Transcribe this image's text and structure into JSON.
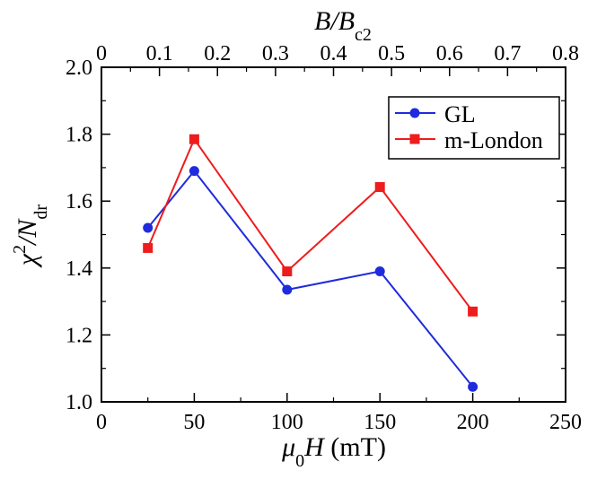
{
  "chart_data": {
    "type": "line",
    "xlabel": {
      "prefix": "μ",
      "sub": "0",
      "main": "H",
      "suffix": " (mT)"
    },
    "ylabel": {
      "main": "χ",
      "sup": "2",
      "mid": "/N",
      "sub": "dr"
    },
    "top_xlabel": {
      "main": "B/B",
      "sub": "c2"
    },
    "xlim": [
      0,
      250
    ],
    "ylim": [
      1.0,
      2.0
    ],
    "top_xlim": [
      0,
      0.8
    ],
    "xticks": [
      0,
      50,
      100,
      150,
      200,
      250
    ],
    "yticks": [
      1.0,
      1.2,
      1.4,
      1.6,
      1.8,
      2.0
    ],
    "yticklabels": [
      "1.0",
      "1.2",
      "1.4",
      "1.6",
      "1.8",
      "2.0"
    ],
    "top_xticks": [
      0,
      0.1,
      0.2,
      0.3,
      0.4,
      0.5,
      0.6,
      0.7,
      0.8
    ],
    "legend_position": "top-right",
    "series": [
      {
        "name": "GL",
        "color": "#1f2bdc",
        "marker": "circle",
        "x": [
          25,
          50,
          100,
          150,
          200
        ],
        "y": [
          1.52,
          1.69,
          1.335,
          1.39,
          1.045
        ]
      },
      {
        "name": "m-London",
        "color": "#ee1c1c",
        "marker": "square",
        "x": [
          25,
          50,
          100,
          150,
          200
        ],
        "y": [
          1.46,
          1.785,
          1.39,
          1.642,
          1.27
        ]
      }
    ]
  }
}
